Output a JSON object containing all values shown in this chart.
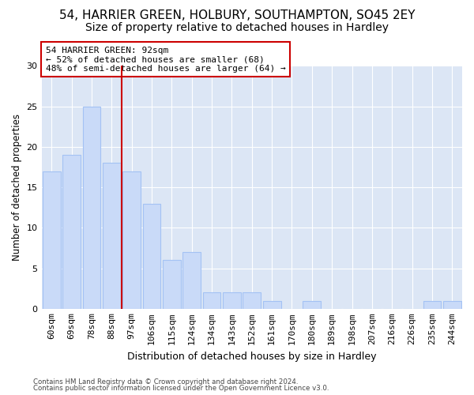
{
  "title1": "54, HARRIER GREEN, HOLBURY, SOUTHAMPTON, SO45 2EY",
  "title2": "Size of property relative to detached houses in Hardley",
  "xlabel": "Distribution of detached houses by size in Hardley",
  "ylabel": "Number of detached properties",
  "categories": [
    "60sqm",
    "69sqm",
    "78sqm",
    "88sqm",
    "97sqm",
    "106sqm",
    "115sqm",
    "124sqm",
    "134sqm",
    "143sqm",
    "152sqm",
    "161sqm",
    "170sqm",
    "180sqm",
    "189sqm",
    "198sqm",
    "207sqm",
    "216sqm",
    "226sqm",
    "235sqm",
    "244sqm"
  ],
  "values": [
    17,
    19,
    25,
    18,
    17,
    13,
    6,
    7,
    2,
    2,
    2,
    1,
    0,
    1,
    0,
    0,
    0,
    0,
    0,
    1,
    1
  ],
  "bar_color": "#c9daf8",
  "bar_edge_color": "#a4c2f4",
  "vline_x": 3.5,
  "vline_color": "#cc0000",
  "annotation_text": "54 HARRIER GREEN: 92sqm\n← 52% of detached houses are smaller (68)\n48% of semi-detached houses are larger (64) →",
  "annotation_box_color": "#ffffff",
  "annotation_box_edge": "#cc0000",
  "ylim": [
    0,
    30
  ],
  "yticks": [
    0,
    5,
    10,
    15,
    20,
    25,
    30
  ],
  "footer1": "Contains HM Land Registry data © Crown copyright and database right 2024.",
  "footer2": "Contains public sector information licensed under the Open Government Licence v3.0.",
  "background_color": "#dce6f5",
  "title1_fontsize": 11,
  "title2_fontsize": 10,
  "xlabel_fontsize": 9,
  "ylabel_fontsize": 8.5,
  "tick_fontsize": 8,
  "annot_fontsize": 8
}
